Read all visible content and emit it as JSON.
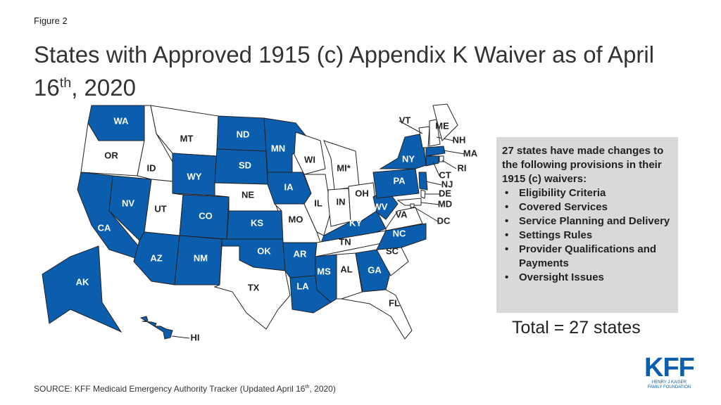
{
  "header": {
    "figure_label": "Figure 2",
    "title": {
      "before": "States with Approved 1915 (c) Appendix K Waiver as of April 16",
      "superscript": "th",
      "after": ", 2020"
    }
  },
  "map": {
    "approved_color": "#0b5ead",
    "other_color": "#ffffff",
    "border_color": "#222222",
    "states": [
      {
        "abbr": "WA",
        "approved": true
      },
      {
        "abbr": "OR",
        "approved": false
      },
      {
        "abbr": "CA",
        "approved": true
      },
      {
        "abbr": "NV",
        "approved": true
      },
      {
        "abbr": "ID",
        "approved": false
      },
      {
        "abbr": "MT",
        "approved": false
      },
      {
        "abbr": "WY",
        "approved": true
      },
      {
        "abbr": "UT",
        "approved": false
      },
      {
        "abbr": "CO",
        "approved": true
      },
      {
        "abbr": "AZ",
        "approved": true
      },
      {
        "abbr": "NM",
        "approved": true
      },
      {
        "abbr": "ND",
        "approved": true
      },
      {
        "abbr": "SD",
        "approved": true
      },
      {
        "abbr": "NE",
        "approved": false
      },
      {
        "abbr": "KS",
        "approved": true
      },
      {
        "abbr": "OK",
        "approved": true
      },
      {
        "abbr": "TX",
        "approved": false
      },
      {
        "abbr": "MN",
        "approved": true
      },
      {
        "abbr": "IA",
        "approved": true
      },
      {
        "abbr": "MO",
        "approved": false
      },
      {
        "abbr": "AR",
        "approved": true
      },
      {
        "abbr": "LA",
        "approved": true
      },
      {
        "abbr": "WI",
        "approved": false
      },
      {
        "abbr": "IL",
        "approved": false
      },
      {
        "abbr": "MI*",
        "approved": false
      },
      {
        "abbr": "IN",
        "approved": false
      },
      {
        "abbr": "OH",
        "approved": false
      },
      {
        "abbr": "KY",
        "approved": true
      },
      {
        "abbr": "TN",
        "approved": false
      },
      {
        "abbr": "MS",
        "approved": true
      },
      {
        "abbr": "AL",
        "approved": false
      },
      {
        "abbr": "GA",
        "approved": true
      },
      {
        "abbr": "FL",
        "approved": false
      },
      {
        "abbr": "SC",
        "approved": false
      },
      {
        "abbr": "NC",
        "approved": true
      },
      {
        "abbr": "VA",
        "approved": false
      },
      {
        "abbr": "WV",
        "approved": true
      },
      {
        "abbr": "PA",
        "approved": true
      },
      {
        "abbr": "NY",
        "approved": true
      },
      {
        "abbr": "VT",
        "approved": false
      },
      {
        "abbr": "NH",
        "approved": false
      },
      {
        "abbr": "ME",
        "approved": false
      },
      {
        "abbr": "MA",
        "approved": true
      },
      {
        "abbr": "RI",
        "approved": false
      },
      {
        "abbr": "CT",
        "approved": true
      },
      {
        "abbr": "NJ",
        "approved": true
      },
      {
        "abbr": "DE",
        "approved": false
      },
      {
        "abbr": "MD",
        "approved": false
      },
      {
        "abbr": "DC",
        "approved": false
      },
      {
        "abbr": "AK",
        "approved": true
      },
      {
        "abbr": "HI",
        "approved": true
      }
    ]
  },
  "info_box": {
    "heading": "27 states have made changes to the following provisions in their 1915 (c) waivers:",
    "items": [
      "Eligibility Criteria",
      "Covered Services",
      "Service Planning and Delivery",
      "Settings Rules",
      "Provider Qualifications and Payments",
      "Oversight Issues"
    ]
  },
  "total": "Total = 27 states",
  "source": {
    "before": "SOURCE: KFF Medicaid Emergency Authority Tracker (Updated April 16",
    "superscript": "th",
    "after": ", 2020)"
  },
  "logo": {
    "mark": "KFF",
    "line1": "HENRY J KAISER",
    "line2": "FAMILY FOUNDATION"
  }
}
